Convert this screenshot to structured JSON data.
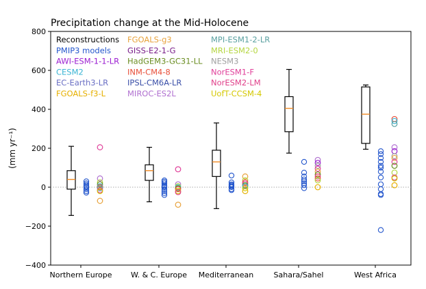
{
  "chart_data": {
    "type": "box_scatter",
    "title": "Precipitation change at the Mid-Holocene",
    "ylabel": "(mm yr⁻¹)",
    "ylim": [
      -400,
      800
    ],
    "yticks": [
      -400,
      -200,
      0,
      200,
      400,
      600,
      800
    ],
    "zero_line": true,
    "categories": [
      "Northern Europe",
      "W. & C. Europe",
      "Mediterranean",
      "Sahara/Sahel",
      "West Africa"
    ],
    "legend": [
      {
        "name": "Reconstructions",
        "color": "#000000"
      },
      {
        "name": "PMIP3 models",
        "color": "#2255cc"
      },
      {
        "name": "AWI-ESM-1-1-LR",
        "color": "#9b1fd1"
      },
      {
        "name": "CESM2",
        "color": "#3bb5d4"
      },
      {
        "name": "EC-Earth3-LR",
        "color": "#6a6fc4"
      },
      {
        "name": "FGOALS-f3-L",
        "color": "#e6b000"
      },
      {
        "name": "FGOALS-g3",
        "color": "#e8a33d"
      },
      {
        "name": "GISS-E2-1-G",
        "color": "#7a1f8a"
      },
      {
        "name": "HadGEM3-GC31-LL",
        "color": "#6b8e23"
      },
      {
        "name": "INM-CM4-8",
        "color": "#e8503a"
      },
      {
        "name": "IPSL-CM6A-LR",
        "color": "#3a4fa8"
      },
      {
        "name": "MIROC-ES2L",
        "color": "#b070d0"
      },
      {
        "name": "MPI-ESM1-2-LR",
        "color": "#5aa0a0"
      },
      {
        "name": "MRI-ESM2-0",
        "color": "#b5d641"
      },
      {
        "name": "NESM3",
        "color": "#a0a0a0"
      },
      {
        "name": "NorESM1-F",
        "color": "#e0409a"
      },
      {
        "name": "NorESM2-LM",
        "color": "#e0408a"
      },
      {
        "name": "UofT-CCSM-4",
        "color": "#d4c800"
      }
    ],
    "reconstructions": [
      {
        "category": "Northern Europe",
        "whisker_low": -145,
        "q1": -10,
        "median": 40,
        "q3": 85,
        "whisker_high": 210
      },
      {
        "category": "W. & C. Europe",
        "whisker_low": -75,
        "q1": 35,
        "median": 85,
        "q3": 115,
        "whisker_high": 205
      },
      {
        "category": "Mediterranean",
        "whisker_low": -110,
        "q1": 55,
        "median": 130,
        "q3": 190,
        "whisker_high": 330
      },
      {
        "category": "Sahara/Sahel",
        "whisker_low": 175,
        "q1": 285,
        "median": 405,
        "q3": 465,
        "whisker_high": 605
      },
      {
        "category": "West Africa",
        "whisker_low": 195,
        "q1": 225,
        "median": 375,
        "q3": 515,
        "whisker_high": 525
      }
    ],
    "pmip3_models": [
      {
        "category": "Northern Europe",
        "values": [
          30,
          20,
          12,
          5,
          0,
          -10,
          -20,
          -28
        ]
      },
      {
        "category": "W. & C. Europe",
        "values": [
          35,
          28,
          20,
          10,
          5,
          0,
          -10,
          -20,
          -30,
          -40
        ]
      },
      {
        "category": "Mediterranean",
        "values": [
          60,
          25,
          15,
          10,
          5,
          0,
          -10,
          -15
        ]
      },
      {
        "category": "Sahara/Sahel",
        "values": [
          130,
          75,
          55,
          40,
          30,
          20,
          10,
          -5
        ]
      },
      {
        "category": "West Africa",
        "values": [
          185,
          170,
          150,
          130,
          110,
          100,
          80,
          50,
          15,
          -10,
          -35,
          -40,
          -220
        ]
      }
    ],
    "pmip4_models": [
      {
        "category": "Northern Europe",
        "points": [
          {
            "model": "NorESM1-F",
            "value": 205
          },
          {
            "model": "MIROC-ES2L",
            "value": 45
          },
          {
            "model": "MRI-ESM2-0",
            "value": 25
          },
          {
            "model": "HadGEM3-GC31-LL",
            "value": 15
          },
          {
            "model": "CESM2",
            "value": 5
          },
          {
            "model": "INM-CM4-8",
            "value": 0
          },
          {
            "model": "MPI-ESM1-2-LR",
            "value": -5
          },
          {
            "model": "NorESM2-LM",
            "value": -15
          },
          {
            "model": "UofT-CCSM-4",
            "value": -20
          },
          {
            "model": "FGOALS-g3",
            "value": -70
          }
        ]
      },
      {
        "category": "W. & C. Europe",
        "points": [
          {
            "model": "NorESM1-F",
            "value": 92
          },
          {
            "model": "MIROC-ES2L",
            "value": 15
          },
          {
            "model": "MRI-ESM2-0",
            "value": 5
          },
          {
            "model": "CESM2",
            "value": 0
          },
          {
            "model": "HadGEM3-GC31-LL",
            "value": -5
          },
          {
            "model": "INM-CM4-8",
            "value": -10
          },
          {
            "model": "UofT-CCSM-4",
            "value": -20
          },
          {
            "model": "NorESM2-LM",
            "value": -25
          },
          {
            "model": "FGOALS-g3",
            "value": -90
          }
        ]
      },
      {
        "category": "Mediterranean",
        "points": [
          {
            "model": "FGOALS-g3",
            "value": 55
          },
          {
            "model": "MRI-ESM2-0",
            "value": 35
          },
          {
            "model": "INM-CM4-8",
            "value": 25
          },
          {
            "model": "NorESM1-F",
            "value": 18
          },
          {
            "model": "HadGEM3-GC31-LL",
            "value": 10
          },
          {
            "model": "CESM2",
            "value": 5
          },
          {
            "model": "UofT-CCSM-4",
            "value": -5
          },
          {
            "model": "FGOALS-f3-L",
            "value": -20
          }
        ]
      },
      {
        "category": "Sahara/Sahel",
        "points": [
          {
            "model": "MIROC-ES2L",
            "value": 140
          },
          {
            "model": "AWI-ESM-1-1-LR",
            "value": 125
          },
          {
            "model": "NESM3",
            "value": 110
          },
          {
            "model": "NorESM1-F",
            "value": 95
          },
          {
            "model": "FGOALS-g3",
            "value": 80
          },
          {
            "model": "HadGEM3-GC31-LL",
            "value": 65
          },
          {
            "model": "NorESM2-LM",
            "value": 55
          },
          {
            "model": "INM-CM4-8",
            "value": 45
          },
          {
            "model": "MRI-ESM2-0",
            "value": 35
          },
          {
            "model": "FGOALS-f3-L",
            "value": 0
          }
        ]
      },
      {
        "category": "West Africa",
        "points": [
          {
            "model": "INM-CM4-8",
            "value": 350
          },
          {
            "model": "CESM2",
            "value": 340
          },
          {
            "model": "MPI-ESM1-2-LR",
            "value": 325
          },
          {
            "model": "MIROC-ES2L",
            "value": 205
          },
          {
            "model": "AWI-ESM-1-1-LR",
            "value": 185
          },
          {
            "model": "NESM3",
            "value": 160
          },
          {
            "model": "FGOALS-g3",
            "value": 150
          },
          {
            "model": "NorESM1-F",
            "value": 130
          },
          {
            "model": "HadGEM3-GC31-LL",
            "value": 110
          },
          {
            "model": "MRI-ESM2-0",
            "value": 75
          },
          {
            "model": "NorESM2-LM",
            "value": 50
          },
          {
            "model": "UofT-CCSM-4",
            "value": 45
          },
          {
            "model": "FGOALS-f3-L",
            "value": 10
          }
        ]
      }
    ]
  }
}
